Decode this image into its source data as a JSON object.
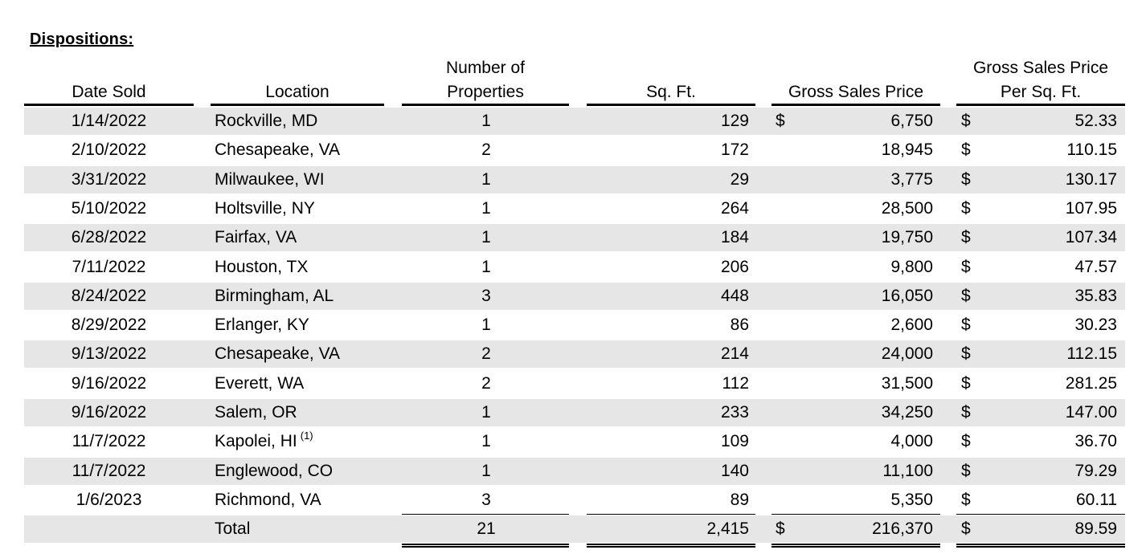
{
  "section_title": "Dispositions:",
  "headers": {
    "date_sold": "Date Sold",
    "location": "Location",
    "num_props_line1": "Number of",
    "num_props_line2": "Properties",
    "sqft": "Sq. Ft.",
    "gross_price": "Gross Sales Price",
    "per_sqft_line1": "Gross Sales Price",
    "per_sqft_line2": "Per Sq. Ft."
  },
  "rows": [
    {
      "date": "1/14/2022",
      "location": "Rockville, MD",
      "footnote": "",
      "num": "1",
      "sqft": "129",
      "gross_cur": "$",
      "gross": "6,750",
      "per_cur": "$",
      "per": "52.33"
    },
    {
      "date": "2/10/2022",
      "location": "Chesapeake, VA",
      "footnote": "",
      "num": "2",
      "sqft": "172",
      "gross_cur": "",
      "gross": "18,945",
      "per_cur": "$",
      "per": "110.15"
    },
    {
      "date": "3/31/2022",
      "location": "Milwaukee, WI",
      "footnote": "",
      "num": "1",
      "sqft": "29",
      "gross_cur": "",
      "gross": "3,775",
      "per_cur": "$",
      "per": "130.17"
    },
    {
      "date": "5/10/2022",
      "location": "Holtsville, NY",
      "footnote": "",
      "num": "1",
      "sqft": "264",
      "gross_cur": "",
      "gross": "28,500",
      "per_cur": "$",
      "per": "107.95"
    },
    {
      "date": "6/28/2022",
      "location": "Fairfax, VA",
      "footnote": "",
      "num": "1",
      "sqft": "184",
      "gross_cur": "",
      "gross": "19,750",
      "per_cur": "$",
      "per": "107.34"
    },
    {
      "date": "7/11/2022",
      "location": "Houston, TX",
      "footnote": "",
      "num": "1",
      "sqft": "206",
      "gross_cur": "",
      "gross": "9,800",
      "per_cur": "$",
      "per": "47.57"
    },
    {
      "date": "8/24/2022",
      "location": "Birmingham, AL",
      "footnote": "",
      "num": "3",
      "sqft": "448",
      "gross_cur": "",
      "gross": "16,050",
      "per_cur": "$",
      "per": "35.83"
    },
    {
      "date": "8/29/2022",
      "location": "Erlanger, KY",
      "footnote": "",
      "num": "1",
      "sqft": "86",
      "gross_cur": "",
      "gross": "2,600",
      "per_cur": "$",
      "per": "30.23"
    },
    {
      "date": "9/13/2022",
      "location": "Chesapeake, VA",
      "footnote": "",
      "num": "2",
      "sqft": "214",
      "gross_cur": "",
      "gross": "24,000",
      "per_cur": "$",
      "per": "112.15"
    },
    {
      "date": "9/16/2022",
      "location": "Everett, WA",
      "footnote": "",
      "num": "2",
      "sqft": "112",
      "gross_cur": "",
      "gross": "31,500",
      "per_cur": "$",
      "per": "281.25"
    },
    {
      "date": "9/16/2022",
      "location": "Salem, OR",
      "footnote": "",
      "num": "1",
      "sqft": "233",
      "gross_cur": "",
      "gross": "34,250",
      "per_cur": "$",
      "per": "147.00"
    },
    {
      "date": "11/7/2022",
      "location": "Kapolei, HI",
      "footnote": "(1)",
      "num": "1",
      "sqft": "109",
      "gross_cur": "",
      "gross": "4,000",
      "per_cur": "$",
      "per": "36.70"
    },
    {
      "date": "11/7/2022",
      "location": "Englewood, CO",
      "footnote": "",
      "num": "1",
      "sqft": "140",
      "gross_cur": "",
      "gross": "11,100",
      "per_cur": "$",
      "per": "79.29"
    },
    {
      "date": "1/6/2023",
      "location": "Richmond, VA",
      "footnote": "",
      "num": "3",
      "sqft": "89",
      "gross_cur": "",
      "gross": "5,350",
      "per_cur": "$",
      "per": "60.11"
    }
  ],
  "total": {
    "date": "",
    "location": "Total",
    "num": "21",
    "sqft": "2,415",
    "gross_cur": "$",
    "gross": "216,370",
    "per_cur": "$",
    "per": "89.59"
  }
}
